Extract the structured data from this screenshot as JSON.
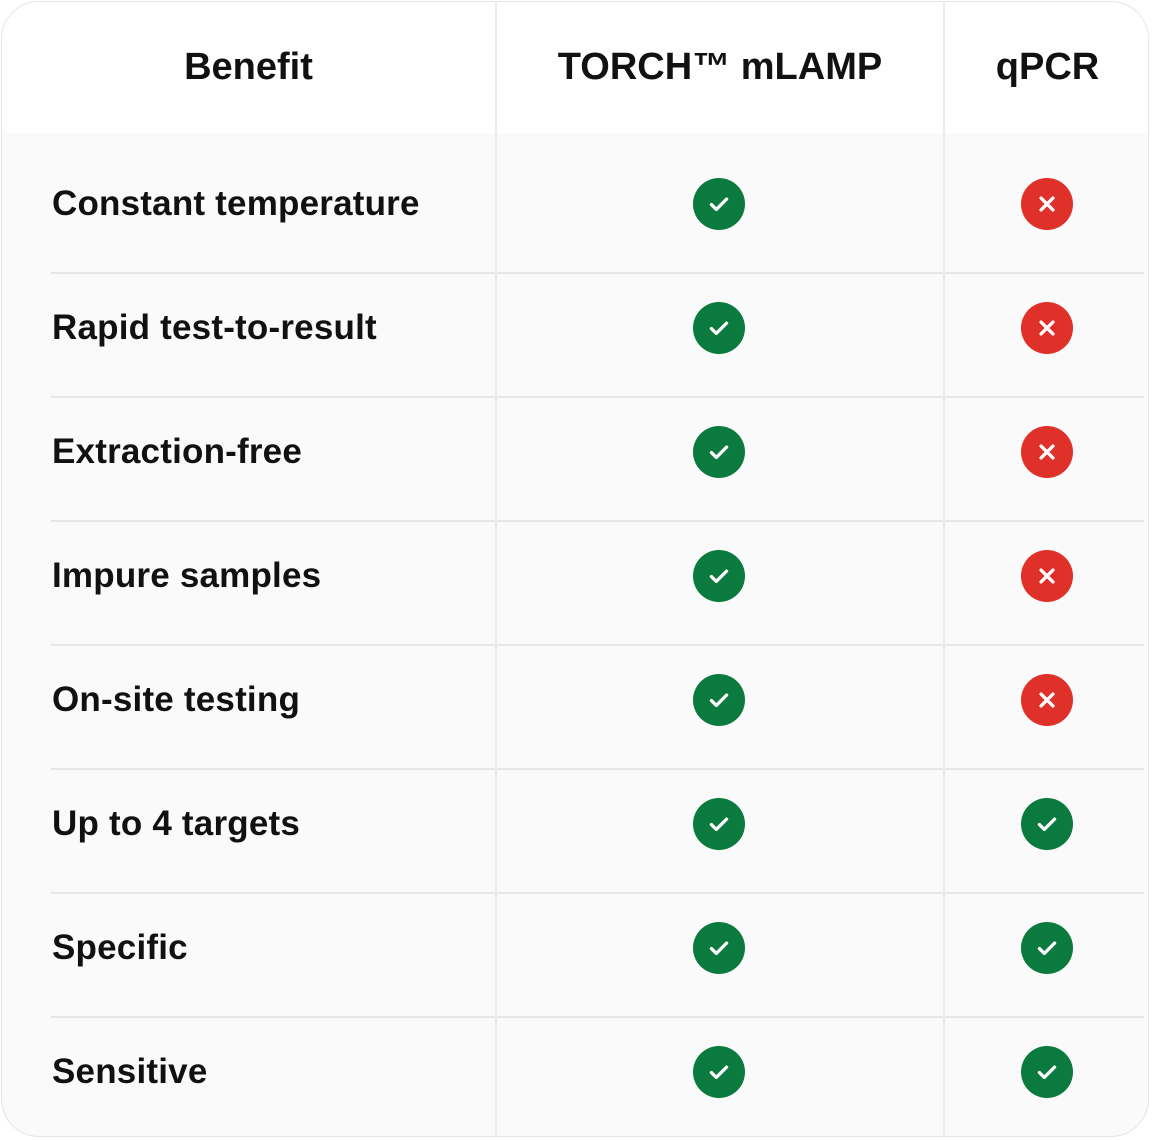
{
  "headers": [
    "Benefit",
    "TORCH™ mLAMP",
    "qPCR"
  ],
  "rows": [
    {
      "benefit": "Constant temperature",
      "mlamp": true,
      "qpcr": false
    },
    {
      "benefit": "Rapid test-to-result",
      "mlamp": true,
      "qpcr": false
    },
    {
      "benefit": "Extraction-free",
      "mlamp": true,
      "qpcr": false
    },
    {
      "benefit": "Impure samples",
      "mlamp": true,
      "qpcr": false
    },
    {
      "benefit": "On-site testing",
      "mlamp": true,
      "qpcr": false
    },
    {
      "benefit": "Up to 4 targets",
      "mlamp": true,
      "qpcr": true
    },
    {
      "benefit": "Specific",
      "mlamp": true,
      "qpcr": true
    },
    {
      "benefit": "Sensitive",
      "mlamp": true,
      "qpcr": true
    }
  ],
  "icons": {
    "yes": "check-circle-icon",
    "no": "x-circle-icon"
  },
  "colors": {
    "yes": "#0a7a3e",
    "no": "#e0302a"
  }
}
